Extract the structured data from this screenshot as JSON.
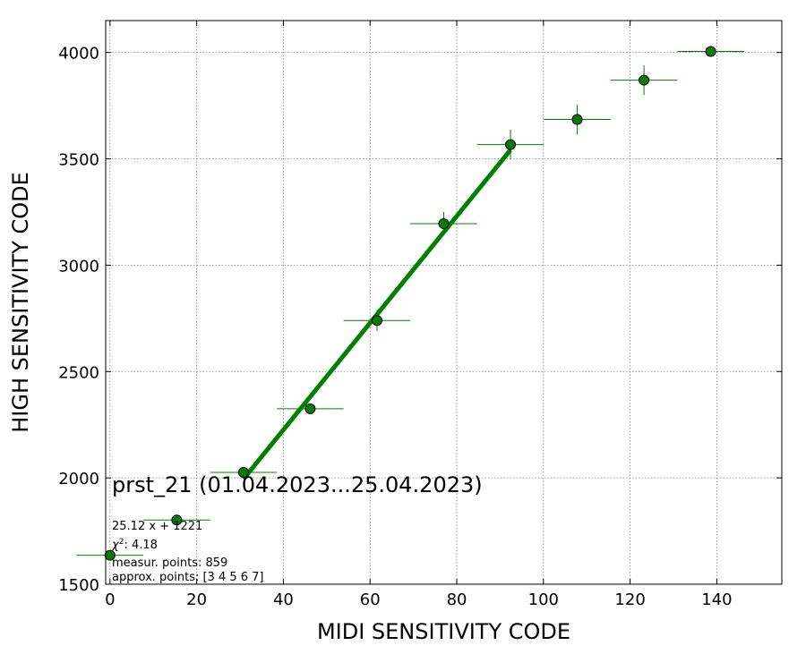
{
  "chart_data": {
    "type": "scatter",
    "title": "",
    "xlabel": "MIDI SENSITIVITY CODE",
    "ylabel": "HIGH SENSITIVITY CODE",
    "xlim": [
      -1,
      155
    ],
    "ylim": [
      1500,
      4150
    ],
    "xticks": [
      0,
      20,
      40,
      60,
      80,
      100,
      120,
      140
    ],
    "yticks": [
      1500,
      2000,
      2500,
      3000,
      3500,
      4000
    ],
    "grid": true,
    "series": [
      {
        "points": [
          {
            "x": 0.0,
            "y": 1636,
            "xerr": 7.7,
            "yerr": 8
          },
          {
            "x": 15.4,
            "y": 1802,
            "xerr": 7.7,
            "yerr": 8
          },
          {
            "x": 30.8,
            "y": 2026,
            "xerr": 7.7,
            "yerr": 20
          },
          {
            "x": 46.2,
            "y": 2325,
            "xerr": 7.7,
            "yerr": 25
          },
          {
            "x": 61.6,
            "y": 2740,
            "xerr": 7.7,
            "yerr": 50
          },
          {
            "x": 77.0,
            "y": 3195,
            "xerr": 7.7,
            "yerr": 55
          },
          {
            "x": 92.4,
            "y": 3567,
            "xerr": 7.7,
            "yerr": 70
          },
          {
            "x": 107.8,
            "y": 3685,
            "xerr": 7.7,
            "yerr": 70
          },
          {
            "x": 123.2,
            "y": 3870,
            "xerr": 7.7,
            "yerr": 70
          },
          {
            "x": 138.6,
            "y": 4005,
            "xerr": 7.7,
            "yerr": 20
          }
        ]
      }
    ],
    "fit_line": {
      "slope": 25.12,
      "intercept": 1221,
      "x_range": [
        30.8,
        92.4
      ]
    },
    "colors": {
      "marker_fill": "#0a7a0a",
      "marker_edge": "#000000",
      "errorbar": "#008000",
      "fit": "#008000",
      "grid": "#808080"
    },
    "annotations": {
      "title_text": "prst_21 (01.04.2023...25.04.2023)",
      "fit_text": "25.12 x + 1221",
      "chi2_label": "χ",
      "chi2_sup": "2",
      "chi2_value": ": 4.18",
      "measur_text": "measur. points: 859",
      "approx_text": "approx. points: [3 4 5 6 7]"
    }
  }
}
